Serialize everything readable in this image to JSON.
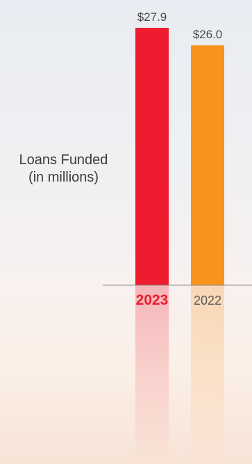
{
  "chart_data": {
    "type": "bar",
    "ylabel": "Loans Funded",
    "ylabel_unit": "(in millions)",
    "categories": [
      "2023",
      "2022"
    ],
    "values": [
      27.9,
      26.0
    ],
    "value_labels": [
      "$27.9",
      "$26.0"
    ],
    "ylim": [
      0,
      27.9
    ],
    "colors": [
      "#ee1c2e",
      "#f7941d"
    ],
    "category_label_colors": [
      "#ee1c2e",
      "#5a5a5a"
    ],
    "category_label_bold": [
      true,
      false
    ],
    "value_label_color": "#4a4a4a",
    "axis_color": "#8a8a8a",
    "grid": false,
    "reflection": true
  }
}
